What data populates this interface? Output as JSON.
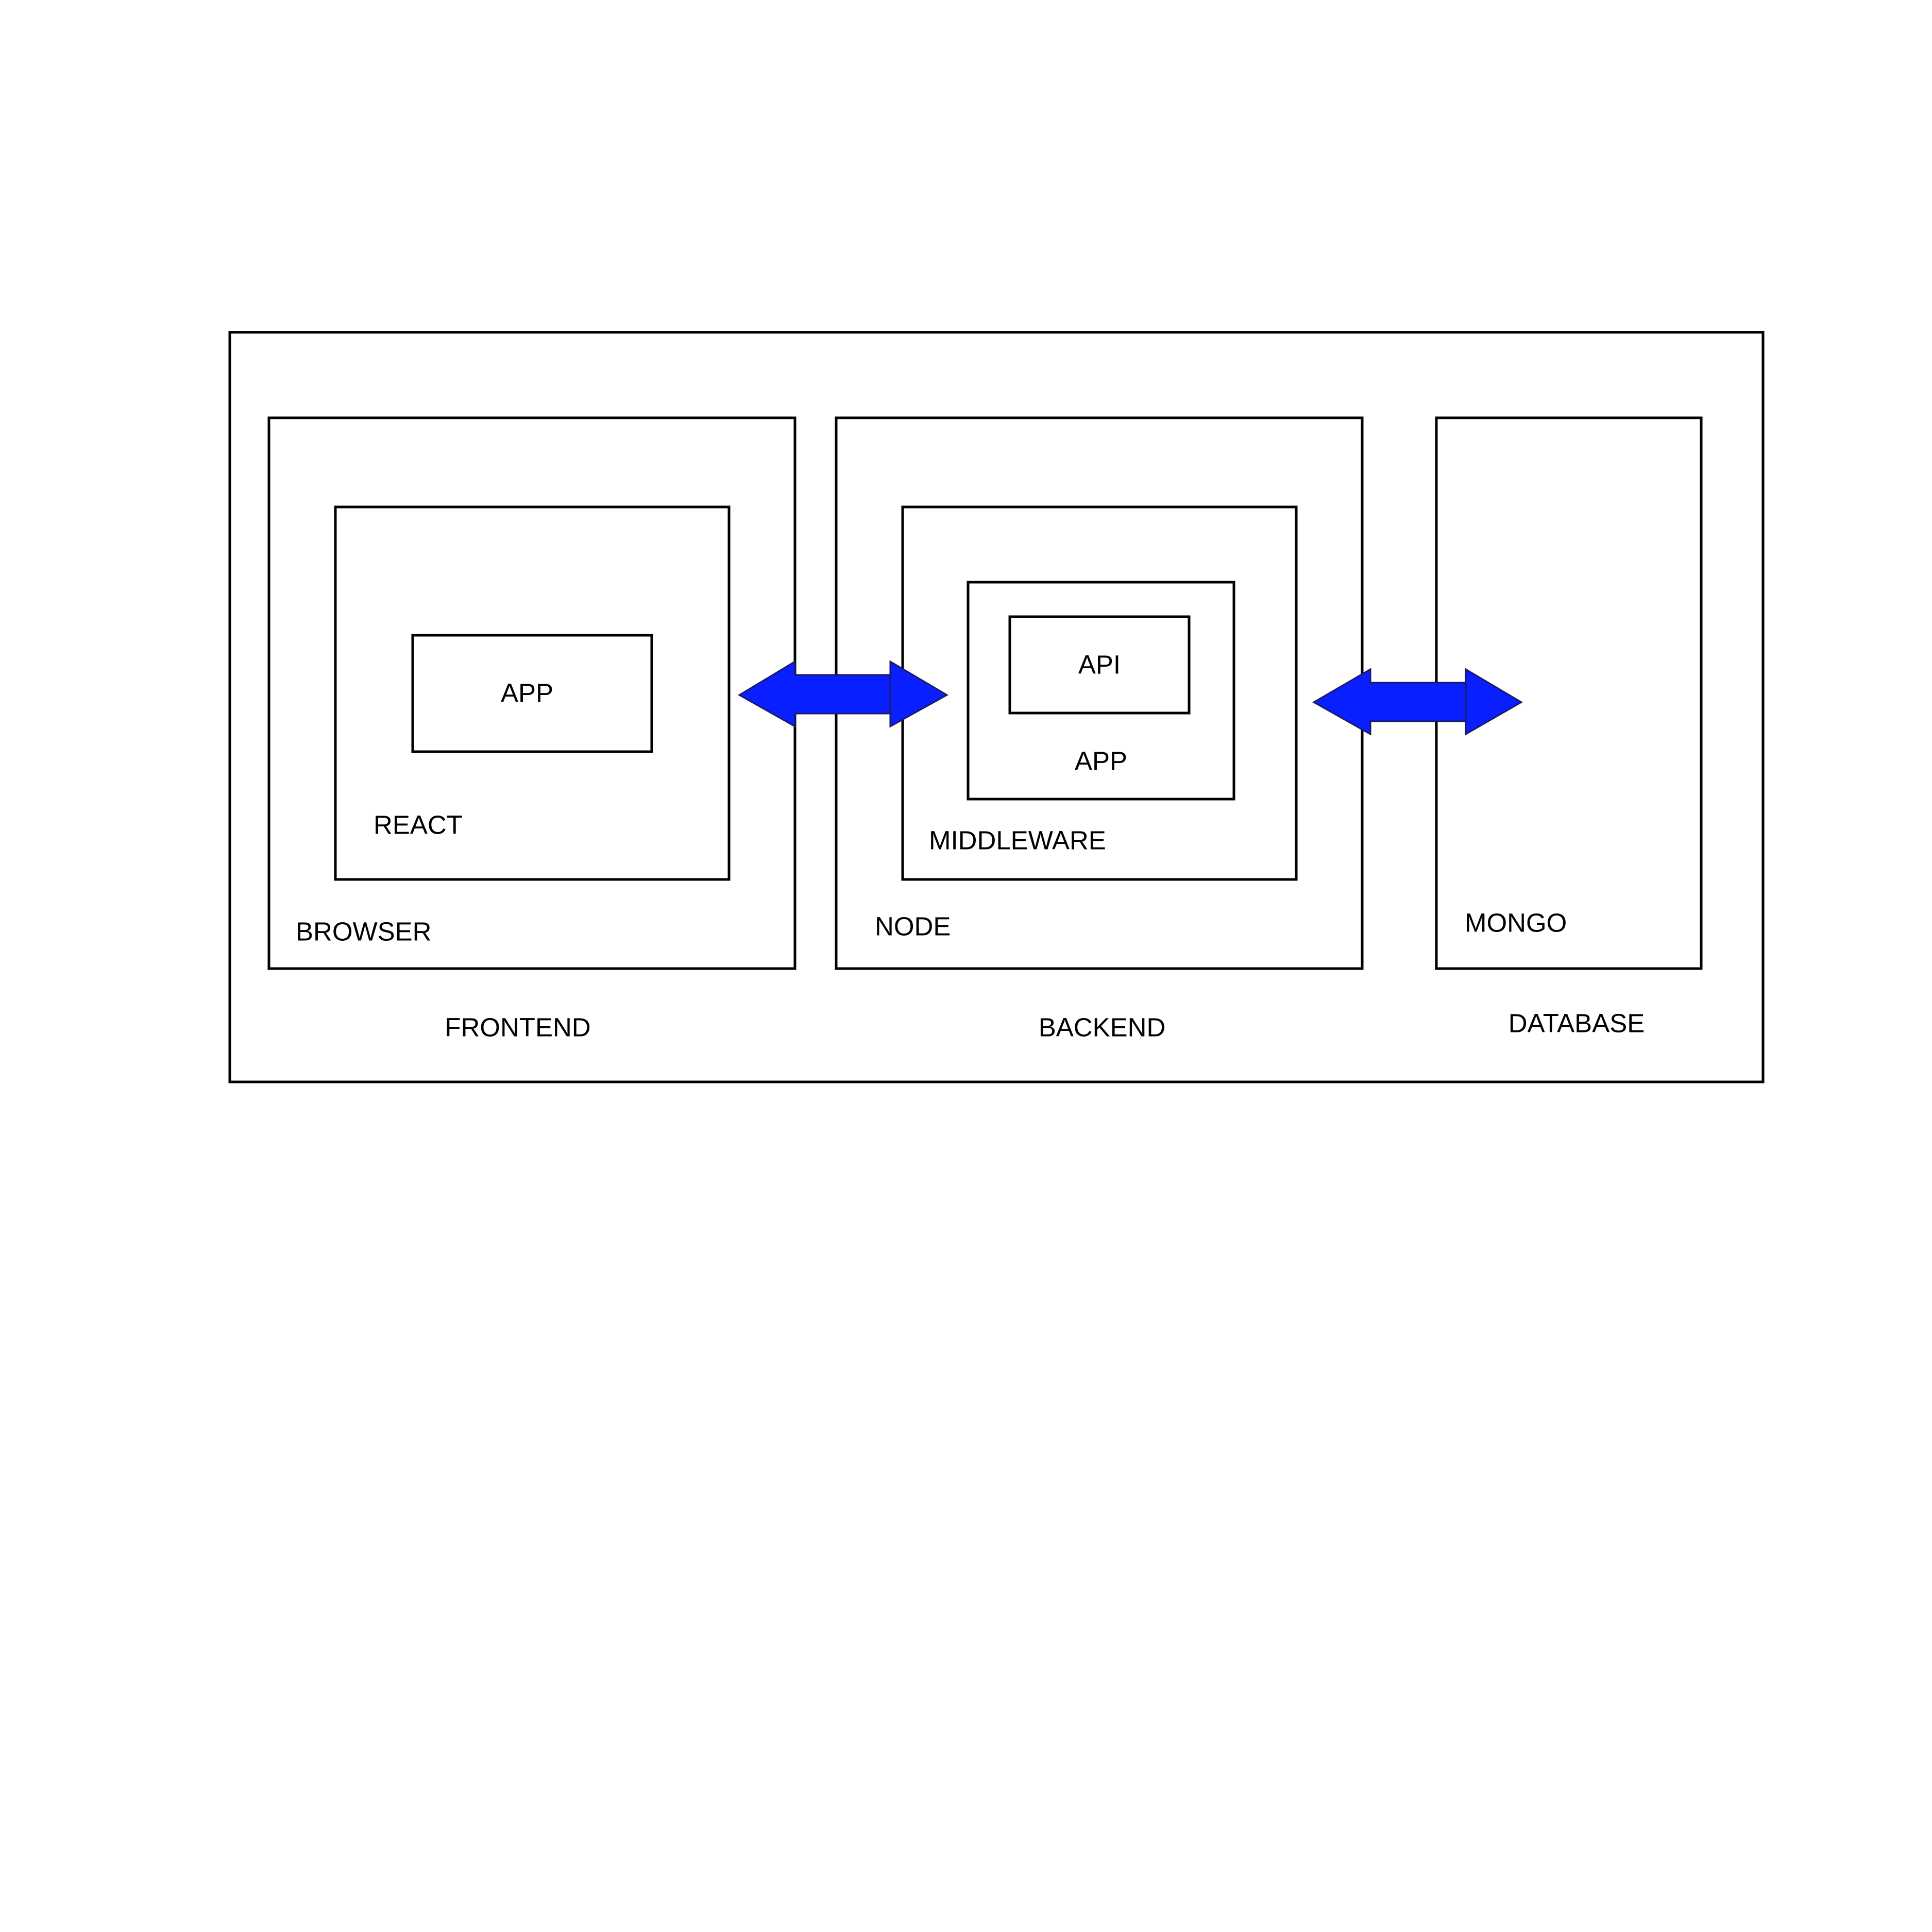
{
  "colors": {
    "arrow_fill": "#0a1fff",
    "stroke": "#000000",
    "background": "#ffffff"
  },
  "sections": {
    "frontend": "FRONTEND",
    "backend": "BACKEND",
    "database": "DATABASE"
  },
  "frontend": {
    "browser": "BROWSER",
    "react": "REACT",
    "app": "APP"
  },
  "backend": {
    "node": "NODE",
    "middleware": "MIDDLEWARE",
    "app": "APP",
    "api": "API"
  },
  "database": {
    "mongo": "MONGO"
  },
  "connectors": [
    {
      "from": "BROWSER",
      "to": "NODE",
      "direction": "bidirectional"
    },
    {
      "from": "NODE",
      "to": "MONGO",
      "direction": "bidirectional"
    }
  ]
}
